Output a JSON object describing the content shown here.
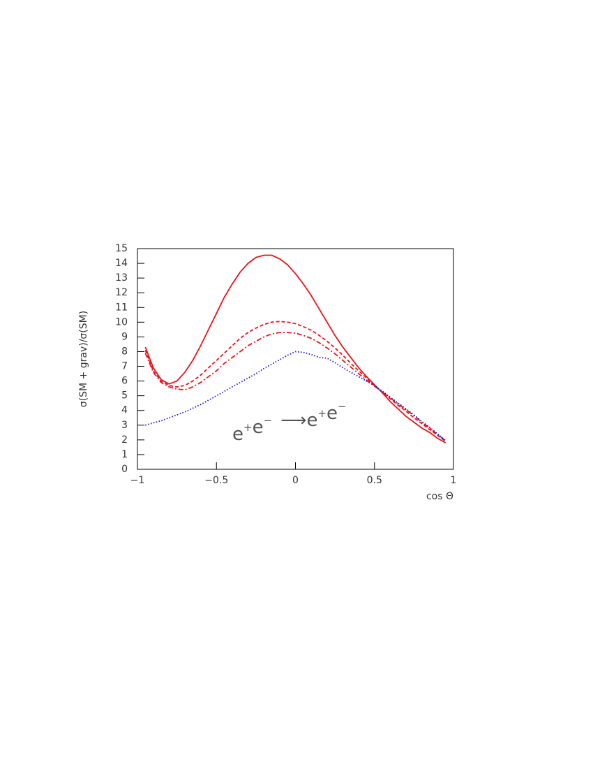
{
  "chart_data": {
    "type": "line",
    "x_label": "cos Θ",
    "y_label": "σ(SM + grav)/σ(SM)",
    "annotation": {
      "initial": [
        {
          "symbol": "e",
          "charge": "+"
        },
        {
          "symbol": "e",
          "charge": "−"
        }
      ],
      "arrow": "⟶",
      "final": [
        {
          "symbol": "e",
          "charge": "+"
        },
        {
          "symbol": "e",
          "charge": "−"
        }
      ]
    },
    "xlim": [
      -1,
      1
    ],
    "xticks": [
      -1,
      -0.5,
      0,
      0.5,
      1
    ],
    "ylim": [
      0,
      15
    ],
    "yticks": [
      0,
      1,
      2,
      3,
      4,
      5,
      6,
      7,
      8,
      9,
      10,
      11,
      12,
      13,
      14,
      15
    ],
    "x": [
      -0.95,
      -0.9,
      -0.85,
      -0.8,
      -0.75,
      -0.7,
      -0.65,
      -0.6,
      -0.55,
      -0.5,
      -0.45,
      -0.4,
      -0.35,
      -0.3,
      -0.25,
      -0.2,
      -0.15,
      -0.1,
      -0.05,
      0,
      0.05,
      0.1,
      0.15,
      0.2,
      0.25,
      0.3,
      0.35,
      0.4,
      0.45,
      0.5,
      0.55,
      0.6,
      0.65,
      0.7,
      0.75,
      0.8,
      0.85,
      0.9,
      0.95
    ],
    "series": [
      {
        "color": "#e8141c",
        "dash": "solid",
        "values": [
          8.3,
          6.9,
          6.1,
          5.8,
          6.0,
          6.6,
          7.4,
          8.4,
          9.5,
          10.6,
          11.7,
          12.6,
          13.4,
          14.0,
          14.4,
          14.55,
          14.55,
          14.3,
          13.9,
          13.3,
          12.6,
          11.8,
          10.9,
          10.0,
          9.1,
          8.3,
          7.6,
          6.9,
          6.3,
          5.75,
          5.2,
          4.6,
          4.1,
          3.6,
          3.2,
          2.8,
          2.5,
          2.1,
          1.8
        ]
      },
      {
        "color": "#e8141c",
        "dash": "dashed",
        "values": [
          8.1,
          6.7,
          6.0,
          5.7,
          5.6,
          5.7,
          6.0,
          6.4,
          6.9,
          7.4,
          7.9,
          8.4,
          8.9,
          9.3,
          9.6,
          9.85,
          10.0,
          10.05,
          10.0,
          9.9,
          9.7,
          9.45,
          9.1,
          8.7,
          8.25,
          7.75,
          7.2,
          6.7,
          6.2,
          5.7,
          5.25,
          4.8,
          4.35,
          3.95,
          3.5,
          3.1,
          2.7,
          2.3,
          1.9
        ]
      },
      {
        "color": "#e8141c",
        "dash": "dashdot",
        "values": [
          7.9,
          6.6,
          5.9,
          5.6,
          5.45,
          5.4,
          5.6,
          5.9,
          6.3,
          6.7,
          7.2,
          7.6,
          8.0,
          8.4,
          8.7,
          9.0,
          9.2,
          9.3,
          9.3,
          9.25,
          9.1,
          8.9,
          8.6,
          8.25,
          7.85,
          7.4,
          6.95,
          6.5,
          6.05,
          5.65,
          5.25,
          4.85,
          4.45,
          4.05,
          3.65,
          3.2,
          2.8,
          2.35,
          1.95
        ]
      },
      {
        "color": "#1414d8",
        "dash": "dotted",
        "values": [
          3.0,
          3.15,
          3.3,
          3.5,
          3.7,
          3.9,
          4.15,
          4.4,
          4.7,
          5.0,
          5.3,
          5.6,
          5.9,
          6.2,
          6.5,
          6.85,
          7.15,
          7.45,
          7.75,
          8.0,
          7.95,
          7.8,
          7.6,
          7.55,
          7.25,
          6.9,
          6.6,
          6.3,
          6.0,
          5.7,
          5.3,
          4.9,
          4.5,
          4.1,
          3.7,
          3.25,
          2.85,
          2.4,
          1.95
        ]
      }
    ]
  }
}
